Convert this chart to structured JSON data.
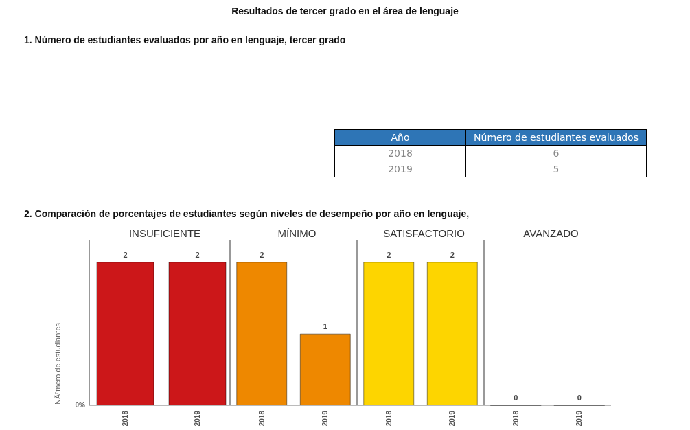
{
  "chart_data": [
    {
      "type": "other",
      "title": "Resultados de tercer grado en el área de lenguaje",
      "subtitle": "1. Número de estudiantes evaluados por año en lenguaje, tercer grado",
      "annotations": [
        "Año",
        "Número de estudiantes evaluados",
        "2018",
        "6",
        "2019",
        "5"
      ]
    },
    {
      "type": "other",
      "title": "2. Comparación de porcentajes de estudiantes según niveles de desempeño por año en lenguaje,"
    },
    {
      "type": "bar",
      "title": "INSUFICIENTE",
      "ylabel": "NÃºmero de estudiantes",
      "annotations": [
        "0%"
      ],
      "categories": [
        "2018",
        "2019"
      ],
      "values": [
        2,
        2
      ],
      "data_labels": true,
      "colors": [
        "#cc1719",
        "#cc1719"
      ]
    },
    {
      "type": "bar",
      "title": "MÍNIMO",
      "categories": [
        "2018",
        "2019"
      ],
      "values": [
        2,
        1
      ],
      "data_labels": true,
      "colors": [
        "#ee8800",
        "#ee8800"
      ]
    },
    {
      "type": "bar",
      "title": "SATISFACTORIO",
      "categories": [
        "2018",
        "2019"
      ],
      "values": [
        2,
        2
      ],
      "data_labels": true,
      "colors": [
        "#fdd500",
        "#fdd500"
      ]
    },
    {
      "type": "other",
      "title": "AVANZADO",
      "categories": [
        "2018",
        "2019"
      ],
      "values": [
        0,
        0
      ],
      "data_labels": true
    }
  ]
}
